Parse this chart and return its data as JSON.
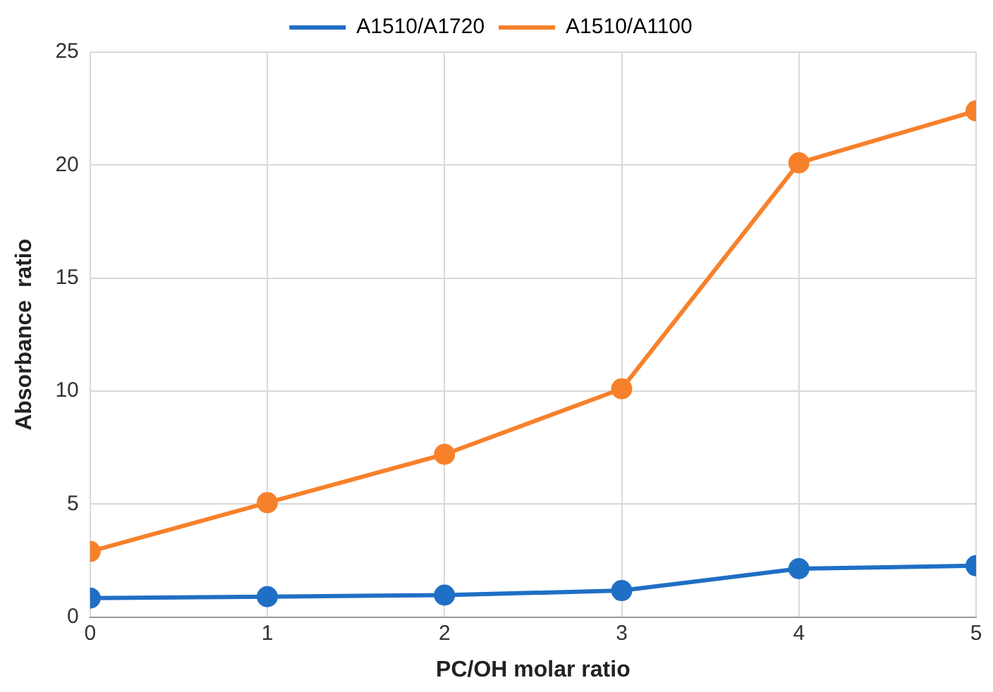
{
  "chart_data": {
    "type": "line",
    "xlabel": "PC/OH molar ratio",
    "ylabel": "Absorbance  ratio",
    "x": [
      0,
      1,
      2,
      3,
      4,
      5
    ],
    "series": [
      {
        "name": "A1510/A1720",
        "color": "#1f6fc5",
        "values": [
          0.84,
          0.9,
          0.97,
          1.17,
          2.14,
          2.27
        ]
      },
      {
        "name": "A1510/A1100",
        "color": "#f7812b",
        "values": [
          2.9,
          5.06,
          7.2,
          10.1,
          20.1,
          22.4
        ]
      }
    ],
    "xlim": [
      0,
      5
    ],
    "xticks": [
      0,
      1,
      2,
      3,
      4,
      5
    ],
    "ylim": [
      0,
      25
    ],
    "yticks": [
      0,
      5,
      10,
      15,
      20,
      25
    ],
    "grid": true,
    "legend": "top",
    "marker": "circle",
    "line_style": "solid"
  }
}
